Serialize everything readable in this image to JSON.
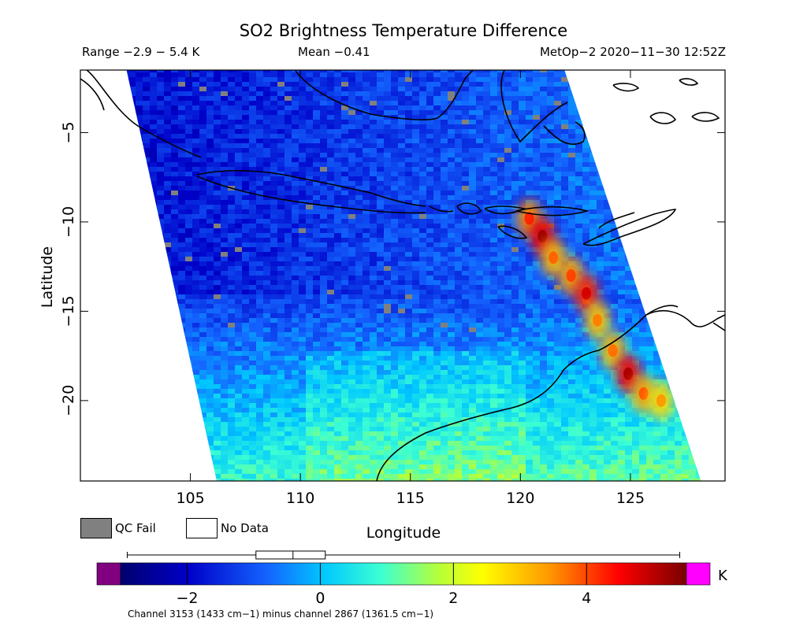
{
  "chart_data": {
    "type": "heatmap",
    "title": "SO2 Brightness Temperature Difference",
    "range_text": "Range −2.9 − 5.4 K",
    "mean_text": "Mean −0.41",
    "satellite_text": "MetOp−2 2020−11−30 12:52Z",
    "xlabel": "Longitude",
    "ylabel": "Latitude",
    "xlim": [
      100,
      129.3
    ],
    "ylim": [
      -24.5,
      -1.5
    ],
    "xticks": [
      105,
      110,
      115,
      120,
      125
    ],
    "yticks": [
      -5,
      -10,
      -15,
      -20
    ],
    "xtick_labels": [
      "105",
      "110",
      "115",
      "120",
      "125"
    ],
    "ytick_labels": [
      "−5",
      "−10",
      "−15",
      "−20"
    ],
    "colorbar": {
      "min": -3.0,
      "max": 5.5,
      "unit": "K",
      "ticks": [
        -2,
        0,
        2,
        4
      ],
      "tick_labels": [
        "−2",
        "0",
        "2",
        "4"
      ],
      "under_color": "#800080",
      "over_color": "#ff00ff",
      "data_range": [
        -2.9,
        5.4
      ],
      "mean": -0.41
    },
    "legend": [
      {
        "label": "QC Fail",
        "color": "#808080"
      },
      {
        "label": "No Data",
        "color": "#ffffff"
      }
    ],
    "footnote": "Channel 3153 (1433 cm−1) minus channel 2867 (1361.5 cm−1)",
    "swath_corners": {
      "top_left": [
        102.1,
        -1.5
      ],
      "top_right": [
        122.0,
        -1.5
      ],
      "bottom_right": [
        128.2,
        -24.5
      ],
      "bottom_left": [
        106.2,
        -24.5
      ]
    },
    "plume_points": [
      {
        "lon": 120.4,
        "lat": -9.8,
        "value": 3.6
      },
      {
        "lon": 121.0,
        "lat": -10.8,
        "value": 4.6
      },
      {
        "lon": 121.5,
        "lat": -12.0,
        "value": 3.2
      },
      {
        "lon": 122.3,
        "lat": -13.0,
        "value": 3.4
      },
      {
        "lon": 123.0,
        "lat": -14.0,
        "value": 4.2
      },
      {
        "lon": 123.5,
        "lat": -15.5,
        "value": 3.0
      },
      {
        "lon": 124.2,
        "lat": -17.2,
        "value": 3.1
      },
      {
        "lon": 124.9,
        "lat": -18.5,
        "value": 4.5
      },
      {
        "lon": 125.6,
        "lat": -19.6,
        "value": 3.3
      },
      {
        "lon": 126.4,
        "lat": -20.0,
        "value": 2.8
      }
    ]
  }
}
